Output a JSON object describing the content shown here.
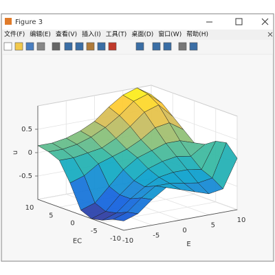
{
  "window": {
    "title": "Figure 3",
    "menu": [
      "文件(F)",
      "编辑(E)",
      "查看(V)",
      "插入(I)",
      "工具(T)",
      "桌面(D)",
      "窗口(W)",
      "帮助(H)"
    ]
  },
  "chart_data": {
    "type": "surface",
    "x_label": "E",
    "y_label": "EC",
    "z_label": "u",
    "x": [
      -10,
      -7.5,
      -5,
      -2.5,
      0,
      2.5,
      5,
      7.5,
      10
    ],
    "y": [
      -10,
      -7.5,
      -5,
      -2.5,
      0,
      2.5,
      5,
      7.5,
      10
    ],
    "z": [
      [
        -0.8,
        -0.7,
        -0.45,
        -0.25,
        -0.35,
        -0.45,
        -0.55,
        -0.5,
        0.1
      ],
      [
        -0.85,
        -0.75,
        -0.5,
        -0.3,
        -0.3,
        -0.35,
        -0.4,
        -0.35,
        0.35
      ],
      [
        -0.95,
        -0.85,
        -0.6,
        -0.4,
        -0.25,
        -0.2,
        -0.2,
        -0.25,
        0.3
      ],
      [
        -1.0,
        -0.9,
        -0.6,
        -0.35,
        -0.15,
        -0.05,
        0.0,
        -0.05,
        0.15
      ],
      [
        -0.9,
        -0.8,
        -0.5,
        -0.2,
        0.0,
        0.1,
        0.2,
        0.2,
        0.1
      ],
      [
        -0.4,
        -0.3,
        -0.1,
        0.0,
        0.1,
        0.25,
        0.45,
        0.5,
        0.3
      ],
      [
        0.0,
        0.0,
        0.05,
        0.1,
        0.25,
        0.45,
        0.7,
        0.8,
        0.5
      ],
      [
        0.1,
        0.1,
        0.15,
        0.25,
        0.4,
        0.6,
        0.85,
        0.95,
        0.7
      ],
      [
        0.15,
        0.15,
        0.2,
        0.3,
        0.45,
        0.7,
        0.9,
        1.0,
        0.8
      ]
    ],
    "xlim": [
      -10,
      10
    ],
    "ylim": [
      -10,
      10
    ],
    "zlim": [
      -1,
      1
    ],
    "xticks": [
      -10,
      -5,
      0,
      5,
      10
    ],
    "yticks": [
      -10,
      -5,
      0,
      5,
      10
    ],
    "zticks": [
      -0.5,
      0,
      0.5
    ],
    "colormap": [
      "#352a87",
      "#0f5cdd",
      "#1481d6",
      "#06a4ca",
      "#2eb7a4",
      "#87bf77",
      "#d1bb59",
      "#fec832",
      "#f9fb0e"
    ],
    "grid": true
  }
}
